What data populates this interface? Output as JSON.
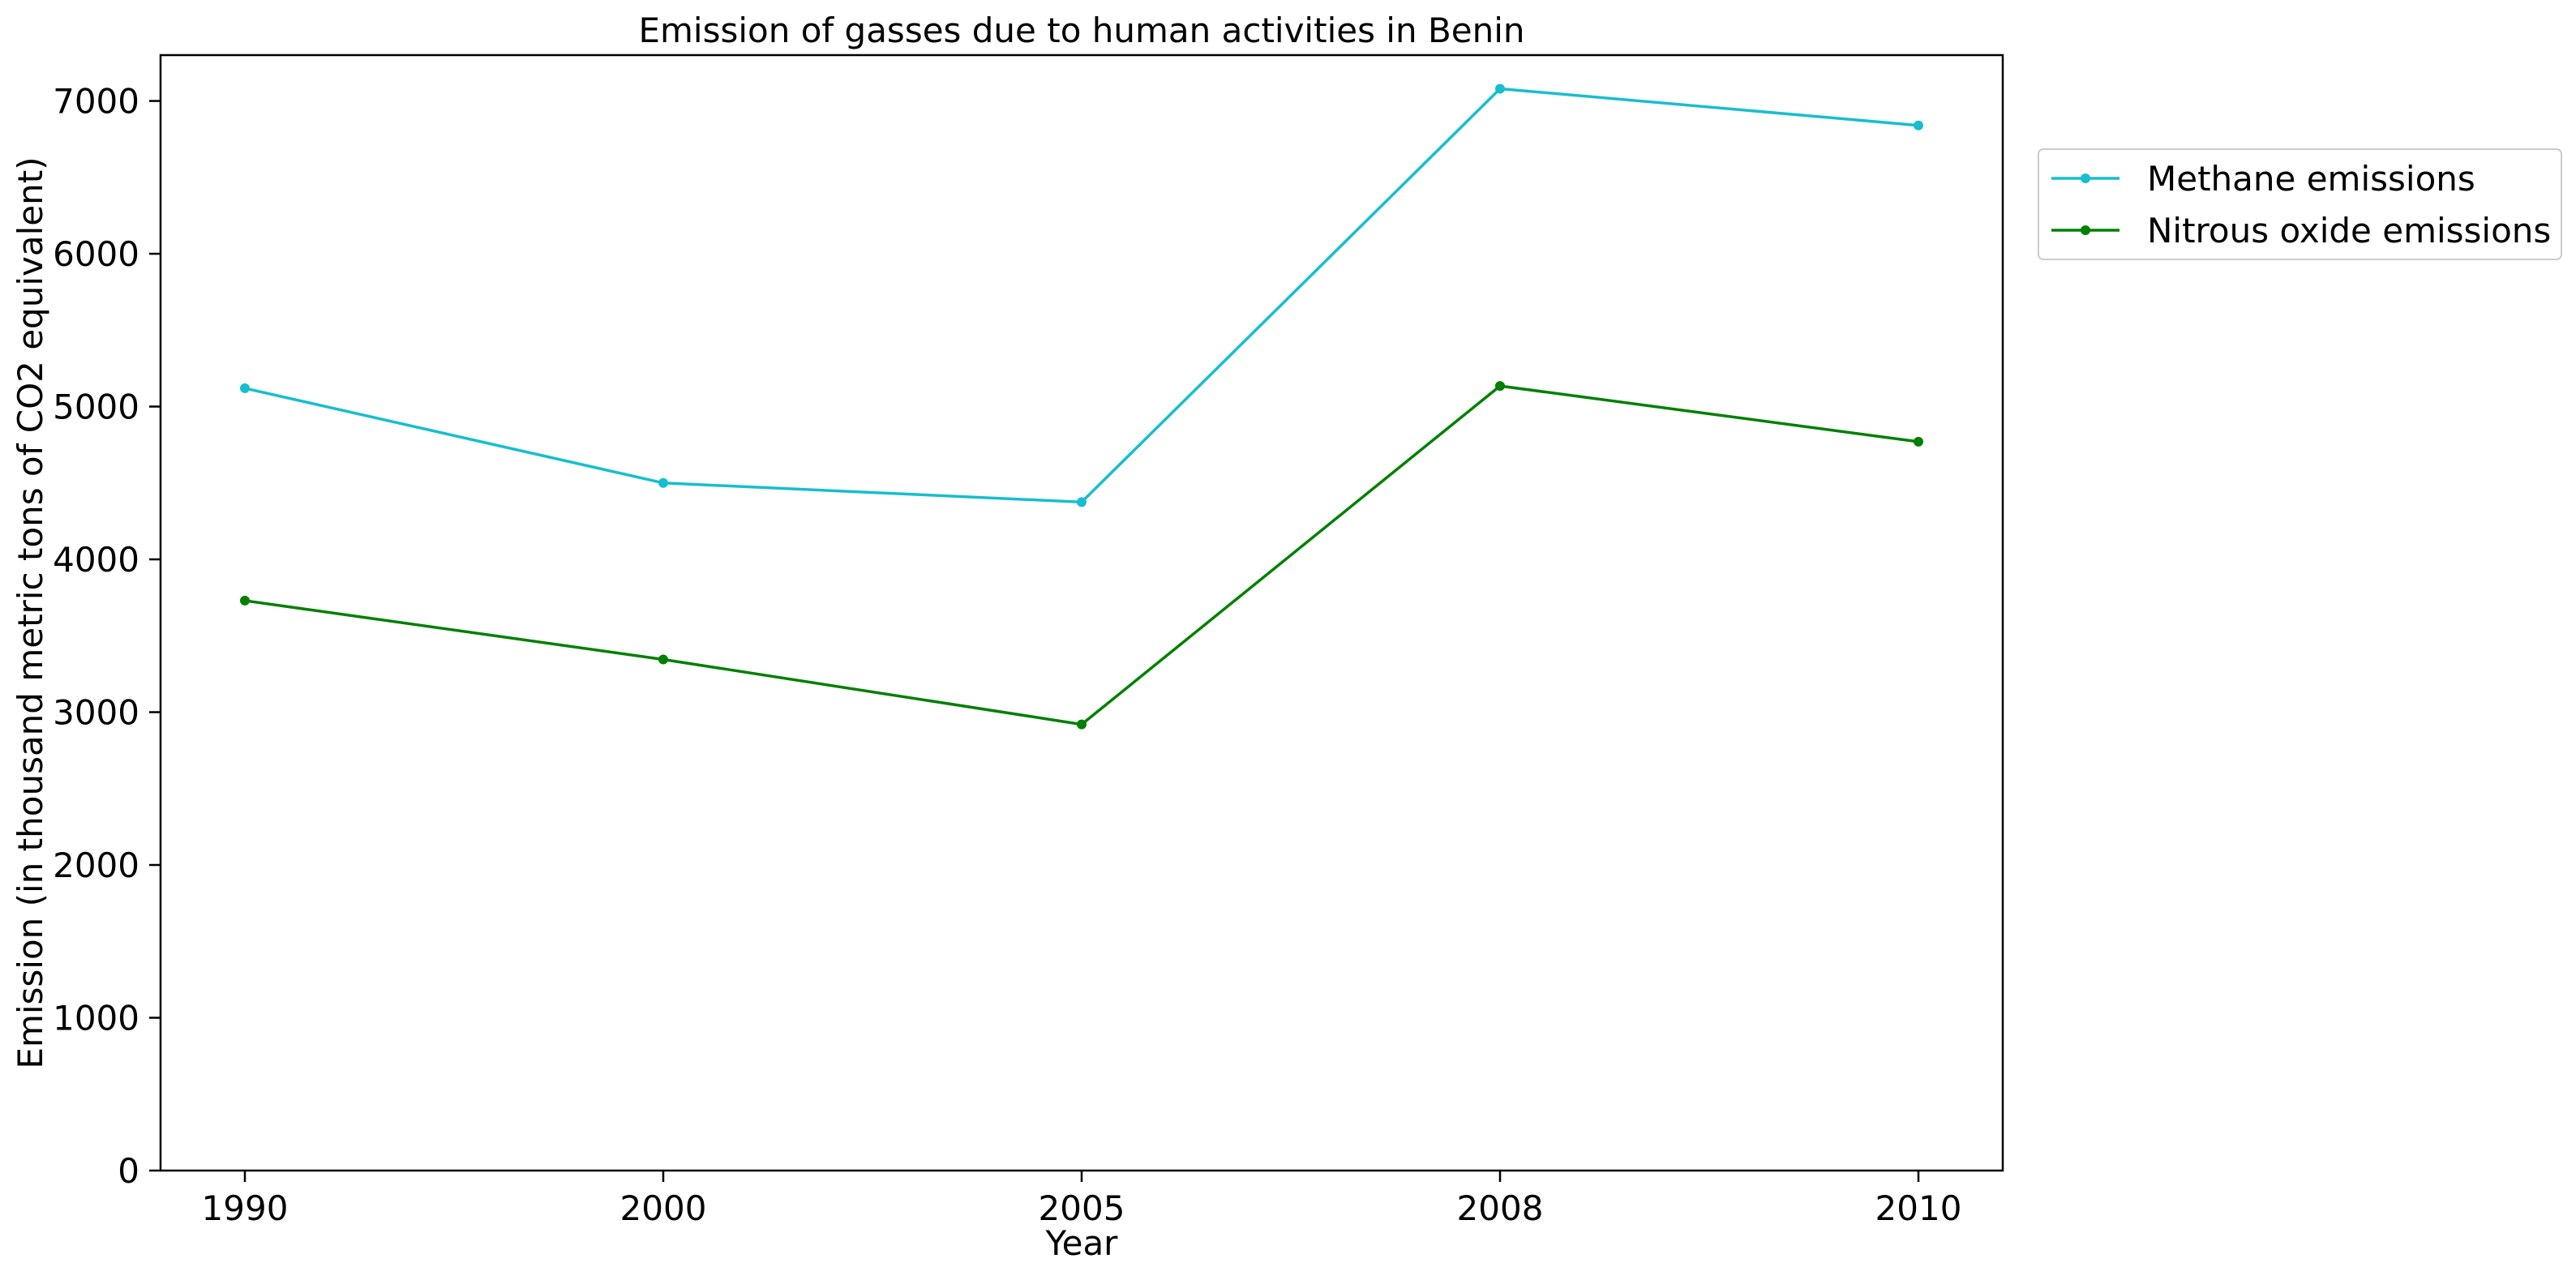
{
  "chart_data": {
    "type": "line",
    "title": "Emission of gasses due to human activities in Benin",
    "xlabel": "Year",
    "ylabel": "Emission (in thousand metric tons of CO2 equivalent)",
    "categories": [
      "1990",
      "2000",
      "2005",
      "2008",
      "2010"
    ],
    "ylim": [
      0,
      7300
    ],
    "yticks": [
      0,
      1000,
      2000,
      3000,
      4000,
      5000,
      6000,
      7000
    ],
    "grid": false,
    "legend_position": "outside-top-right",
    "series": [
      {
        "name": "Methane emissions",
        "color": "#17becf",
        "values": [
          5120,
          4500,
          4375,
          7080,
          6840
        ]
      },
      {
        "name": "Nitrous oxide emissions",
        "color": "#008000",
        "values": [
          3730,
          3345,
          2920,
          5135,
          4770
        ]
      }
    ]
  }
}
